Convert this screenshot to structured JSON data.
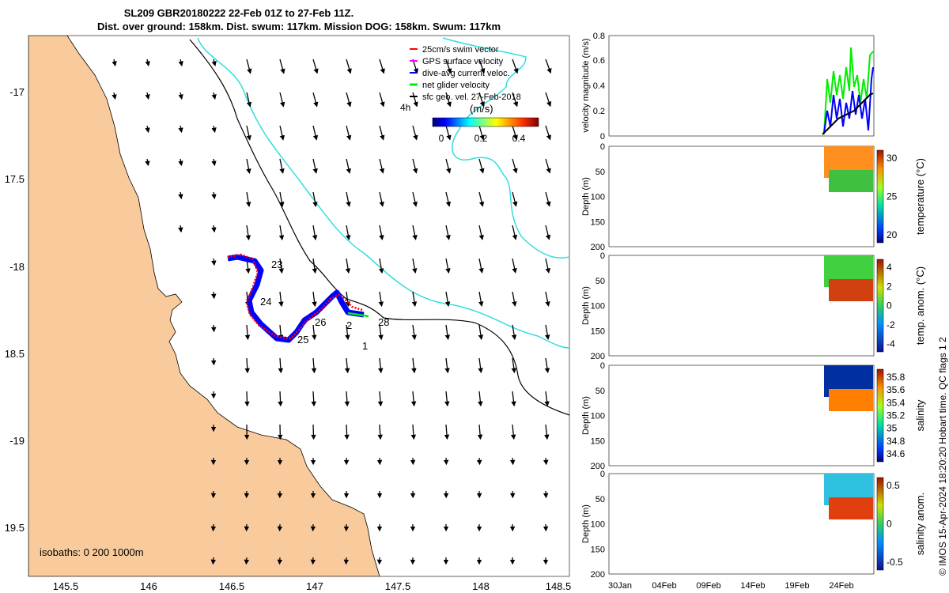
{
  "title": {
    "line1": "SL209 GBR20180222 22-Feb 01Z to 27-Feb 11Z.",
    "line2": "Dist. over ground: 158km. Dist. swum: 117km. Mission DOG: 158km. Swum: 117km"
  },
  "map": {
    "lon_ticks": [
      "145.5",
      "146",
      "146.5",
      "147",
      "147.5",
      "148",
      "148.5"
    ],
    "lat_ticks": [
      "-17",
      "17.5",
      "-18",
      "18.5",
      "-19",
      "19.5"
    ],
    "legend": [
      {
        "label": "25cm/s swim vector",
        "color": "#ff0000"
      },
      {
        "label": "GPS surface velocity",
        "color": "#ff00ff"
      },
      {
        "label": "dive-avg current veloc.",
        "color": "#0000ff"
      },
      {
        "label": "net glider velocity",
        "color": "#00ee00"
      },
      {
        "label": "sfc geo. vel. 27-Feb-2018",
        "color": "#000000"
      }
    ],
    "colorbar": {
      "label": "(m/s)",
      "ticks": [
        "0",
        "0.2",
        "0.4"
      ],
      "prefix": "4h"
    },
    "day_labels": [
      "23",
      "24",
      "25",
      "26",
      "2",
      "28",
      "1"
    ],
    "isobaths_label": "isobaths: 0   200  1000m",
    "colors": {
      "land": "#f9cb9c",
      "track": "#0000ff",
      "swim": "#ff0000",
      "contour200": "#000000",
      "contour1000": "#33dddd"
    }
  },
  "panels": [
    {
      "ylabel": "velocity magnitude (m/s)",
      "yticks": [
        "0",
        "0.2",
        "0.4",
        "0.6",
        "0.8"
      ],
      "cbar_label": "",
      "cbar_ticks": []
    },
    {
      "ylabel": "Depth (m)",
      "yticks": [
        "0",
        "50",
        "100",
        "150",
        "200"
      ],
      "cbar_label": "temperature (°C)",
      "cbar_ticks": [
        "30",
        "25",
        "20"
      ]
    },
    {
      "ylabel": "Depth (m)",
      "yticks": [
        "0",
        "50",
        "100",
        "150",
        "200"
      ],
      "cbar_label": "temp. anom. (°C)",
      "cbar_ticks": [
        "4",
        "2",
        "0",
        "-2",
        "-4"
      ]
    },
    {
      "ylabel": "Depth (m)",
      "yticks": [
        "0",
        "50",
        "100",
        "150",
        "200"
      ],
      "cbar_label": "salinity",
      "cbar_ticks": [
        "35.8",
        "35.6",
        "35.4",
        "35.2",
        "35",
        "34.8",
        "34.6"
      ]
    },
    {
      "ylabel": "Depth (m)",
      "yticks": [
        "0",
        "50",
        "100",
        "150",
        "200"
      ],
      "cbar_label": "salinity anom.",
      "cbar_ticks": [
        "0.5",
        "0",
        "-0.5"
      ]
    }
  ],
  "time_ticks": [
    "30Jan",
    "04Feb",
    "09Feb",
    "14Feb",
    "19Feb",
    "24Feb"
  ],
  "side_note": "© IMOS 15-Apr-2024 18:20:20 Hobart time. QC flags 1  2"
}
